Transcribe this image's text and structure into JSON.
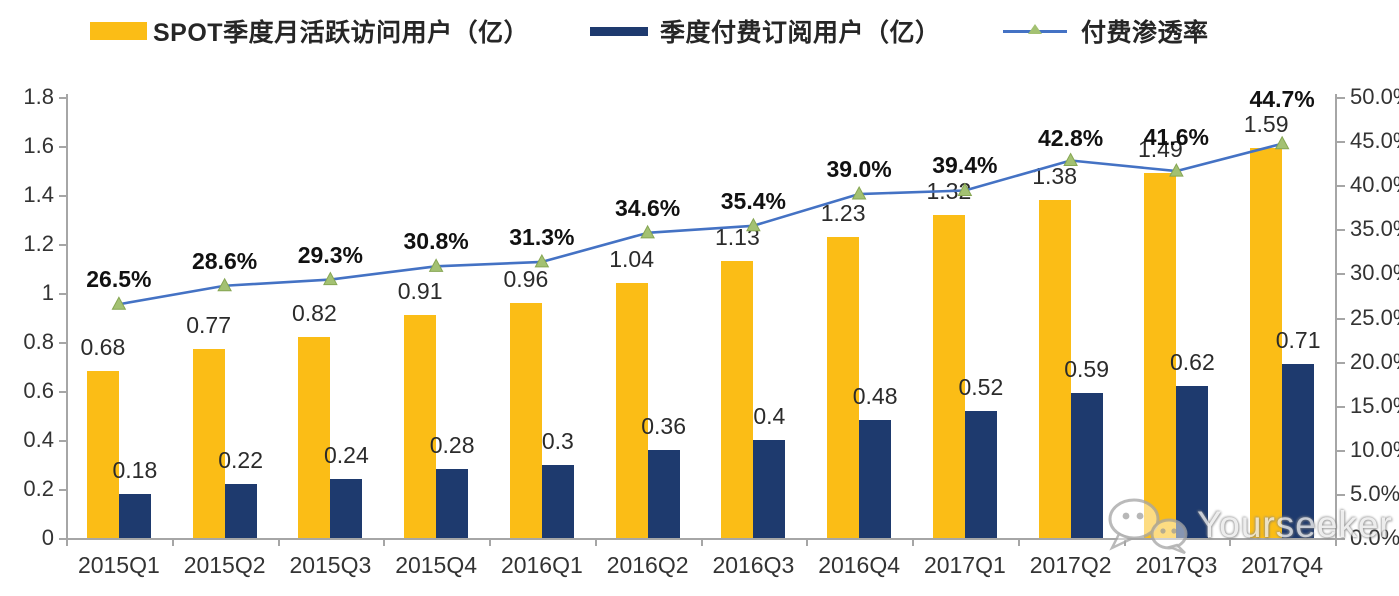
{
  "legend": {
    "items": [
      {
        "label": "SPOT季度月活跃访问用户（亿）",
        "swatch": "yellow-bar",
        "color": "#FBBD16"
      },
      {
        "label": "季度付费订阅用户（亿）",
        "swatch": "navy-bar",
        "color": "#1E3A6E"
      },
      {
        "label": "付费渗透率",
        "swatch": "line-with-triangle-marker",
        "line_color": "#4472C4",
        "marker_color": "#A3C172"
      }
    ]
  },
  "watermark": {
    "text": "Yourseeker",
    "icon": "wechat-bubbles-icon"
  },
  "chart_data": {
    "type": "bar",
    "subtype": "grouped-bars-with-line-overlay",
    "categories": [
      "2015Q1",
      "2015Q2",
      "2015Q3",
      "2015Q4",
      "2016Q1",
      "2016Q2",
      "2016Q3",
      "2016Q4",
      "2017Q1",
      "2017Q2",
      "2017Q3",
      "2017Q4"
    ],
    "series": [
      {
        "name": "SPOT季度月活跃访问用户（亿）",
        "type": "bar",
        "axis": "left",
        "color": "#FBBD16",
        "values": [
          0.68,
          0.77,
          0.82,
          0.91,
          0.96,
          1.04,
          1.13,
          1.23,
          1.32,
          1.38,
          1.49,
          1.59
        ],
        "labels": [
          "0.68",
          "0.77",
          "0.82",
          "0.91",
          "0.96",
          "1.04",
          "1.13",
          "1.23",
          "1.32",
          "1.38",
          "1.49",
          "1.59"
        ]
      },
      {
        "name": "季度付费订阅用户（亿）",
        "type": "bar",
        "axis": "left",
        "color": "#1E3A6E",
        "values": [
          0.18,
          0.22,
          0.24,
          0.28,
          0.3,
          0.36,
          0.4,
          0.48,
          0.52,
          0.59,
          0.62,
          0.71
        ],
        "labels": [
          "0.18",
          "0.22",
          "0.24",
          "0.28",
          "0.3",
          "0.36",
          "0.4",
          "0.48",
          "0.52",
          "0.59",
          "0.62",
          "0.71"
        ]
      },
      {
        "name": "付费渗透率",
        "type": "line",
        "axis": "right",
        "color": "#4472C4",
        "marker": "triangle",
        "marker_color": "#A3C172",
        "values": [
          26.5,
          28.6,
          29.3,
          30.8,
          31.3,
          34.6,
          35.4,
          39.0,
          39.4,
          42.8,
          41.6,
          44.7
        ],
        "labels": [
          "26.5%",
          "28.6%",
          "29.3%",
          "30.8%",
          "31.3%",
          "34.6%",
          "35.4%",
          "39.0%",
          "39.4%",
          "42.8%",
          "41.6%",
          "44.7%"
        ]
      }
    ],
    "left_axis": {
      "min": 0,
      "max": 1.8,
      "tick_labels": [
        "1.8",
        "1.6",
        "1.4",
        "1.2",
        "1",
        "0.8",
        "0.6",
        "0.4",
        "0.2",
        "0"
      ]
    },
    "right_axis": {
      "min": 0,
      "max": 50,
      "tick_labels": [
        "50.0%",
        "45.0%",
        "40.0%",
        "35.0%",
        "30.0%",
        "25.0%",
        "20.0%",
        "15.0%",
        "10.0%",
        "5.0%",
        "0.0%"
      ]
    },
    "legend_position": "top",
    "grid": false,
    "title": "",
    "xlabel": "",
    "ylabel": ""
  }
}
